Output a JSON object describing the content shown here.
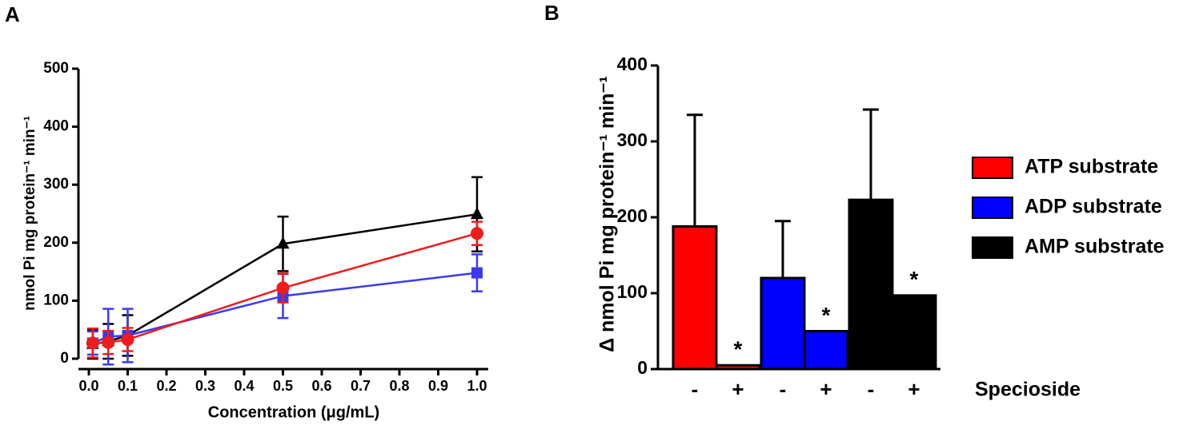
{
  "chart_data": [
    {
      "type": "line",
      "panel_label": "A",
      "x_label": "Concentration (μg/mL)",
      "y_label": "nmol Pi mg protein⁻¹ min⁻¹",
      "x": [
        0.01,
        0.05,
        0.1,
        0.5,
        1
      ],
      "series": [
        {
          "color": "#000000",
          "marker": "triangle",
          "values": [
            25,
            30,
            40,
            198,
            249
          ],
          "errors": [
            25,
            30,
            35,
            47,
            64
          ]
        },
        {
          "color": "#3a3af0",
          "marker": "square",
          "values": [
            27,
            38,
            40,
            108,
            148
          ],
          "errors": [
            20,
            48,
            46,
            38,
            32
          ]
        },
        {
          "color": "#ee1c1c",
          "marker": "circle",
          "values": [
            27,
            28,
            33,
            122,
            216
          ],
          "errors": [
            25,
            20,
            20,
            25,
            20
          ]
        }
      ],
      "xlim": [
        0,
        1
      ],
      "ylim": [
        0,
        500
      ],
      "xticks": [
        {
          "value": 0,
          "label": "0.0"
        },
        0.1,
        0.2,
        0.3,
        0.4,
        0.5,
        0.6,
        0.7,
        0.8,
        0.9,
        {
          "value": 1,
          "label": "1.0"
        }
      ],
      "yticks": [
        0,
        100,
        200,
        300,
        400,
        500
      ]
    },
    {
      "type": "bar",
      "panel_label": "B",
      "x_label": "Specioside",
      "y_label": "Δ nmol Pi mg protein⁻¹ min⁻¹",
      "categories": [
        "-",
        "+"
      ],
      "series": [
        {
          "name": "ATP substrate",
          "color": "#ff0000",
          "values": [
            188,
            5
          ],
          "errors": [
            147,
            null
          ],
          "significance": [
            null,
            "*"
          ]
        },
        {
          "name": "ADP substrate",
          "color": "#0000ff",
          "values": [
            120,
            50
          ],
          "errors": [
            75,
            null
          ],
          "significance": [
            null,
            "*"
          ]
        },
        {
          "name": "AMP substrate",
          "color": "#000000",
          "values": [
            223,
            97
          ],
          "errors": [
            119,
            null
          ],
          "significance": [
            null,
            "*"
          ]
        }
      ],
      "ylim": [
        0,
        400
      ],
      "yticks": [
        0,
        100,
        200,
        300,
        400
      ],
      "legend": "right"
    }
  ]
}
